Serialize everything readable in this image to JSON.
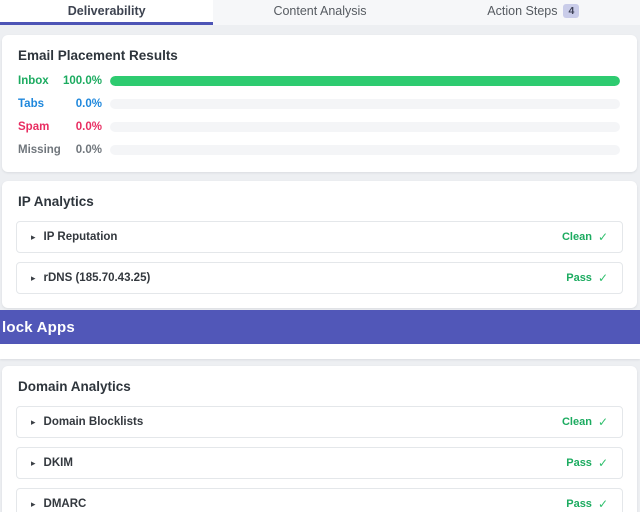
{
  "colors": {
    "accent_indigo": "#5157b8",
    "tab_underline": "#4d54b6",
    "green_text": "#1cab60",
    "green_bar": "#2ecb70",
    "green_check": "#31c06e",
    "blue_text": "#1e87dc",
    "pink_text": "#e82d61",
    "gray_text": "#70767c",
    "page_bg": "#edeff2",
    "track_bg": "#f4f5f7"
  },
  "tabs": {
    "deliverability": {
      "label": "Deliverability"
    },
    "content_analysis": {
      "label": "Content Analysis"
    },
    "action_steps": {
      "label": "Action Steps",
      "badge": "4"
    }
  },
  "placement": {
    "title": "Email Placement Results",
    "chart_data": {
      "type": "bar",
      "categories": [
        "Inbox",
        "Tabs",
        "Spam",
        "Missing"
      ],
      "values": [
        100.0,
        0.0,
        0.0,
        0.0
      ],
      "unit": "%",
      "xlim": [
        0,
        100
      ]
    },
    "rows": [
      {
        "label": "Inbox",
        "value": "100.0%",
        "percent": 100.0,
        "color": "#1cab60",
        "bar_color": "#2ecb70",
        "bar_width": "100%"
      },
      {
        "label": "Tabs",
        "value": "0.0%",
        "percent": 0.0,
        "color": "#1e87dc",
        "bar_color": "#1e87dc",
        "bar_width": "0%"
      },
      {
        "label": "Spam",
        "value": "0.0%",
        "percent": 0.0,
        "color": "#e82d61",
        "bar_color": "#e82d61",
        "bar_width": "0%"
      },
      {
        "label": "Missing",
        "value": "0.0%",
        "percent": 0.0,
        "color": "#70767c",
        "bar_color": "#70767c",
        "bar_width": "0%"
      }
    ]
  },
  "ip_analytics": {
    "title": "IP Analytics",
    "rows": [
      {
        "label": "IP Reputation",
        "status": "Clean",
        "caret": "▸",
        "check": "✓"
      },
      {
        "label": "rDNS (185.70.43.25)",
        "status": "Pass",
        "caret": "▸",
        "check": "✓"
      }
    ]
  },
  "banner": {
    "text": "lock Apps"
  },
  "domain_analytics": {
    "title": "Domain Analytics",
    "rows": [
      {
        "label": "Domain Blocklists",
        "status": "Clean",
        "caret": "▸",
        "check": "✓"
      },
      {
        "label": "DKIM",
        "status": "Pass",
        "caret": "▸",
        "check": "✓"
      },
      {
        "label": "DMARC",
        "status": "Pass",
        "caret": "▸",
        "check": "✓"
      }
    ]
  }
}
